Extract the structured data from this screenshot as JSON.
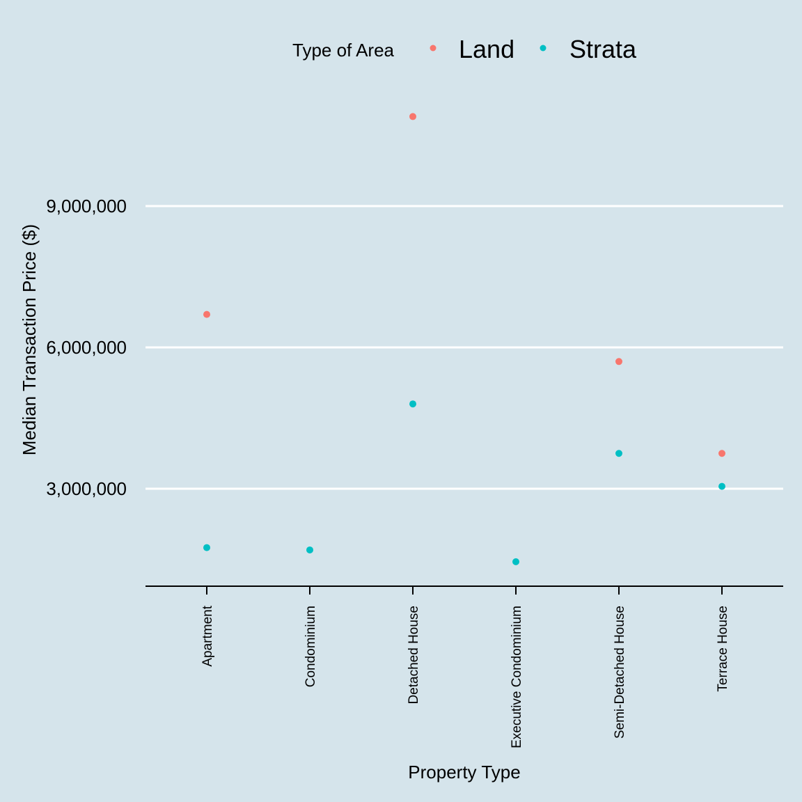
{
  "chart_data": {
    "type": "scatter",
    "xlabel": "Property Type",
    "ylabel": "Median Transaction Price ($)",
    "categories": [
      "Apartment",
      "Condominium",
      "Detached House",
      "Executive Condominium",
      "Semi-Detached House",
      "Terrace House"
    ],
    "yticks": [
      3000000,
      6000000,
      9000000
    ],
    "ytick_labels": [
      "3,000,000",
      "6,000,000",
      "9,000,000"
    ],
    "ylim": [
      1000000,
      11800000
    ],
    "grid": "horizontal major lines only",
    "legend": {
      "title": "Type of Area",
      "placement": "top"
    },
    "series": [
      {
        "name": "Land",
        "color": "#f8766d",
        "values": [
          6700000,
          null,
          10900000,
          null,
          5700000,
          3750000
        ]
      },
      {
        "name": "Strata",
        "color": "#00bfc4",
        "values": [
          1750000,
          1700000,
          4800000,
          1450000,
          3750000,
          3050000
        ]
      }
    ],
    "colors": {
      "background": "#d5e4eb",
      "gridline": "#ffffff",
      "axis": "#000000"
    }
  }
}
